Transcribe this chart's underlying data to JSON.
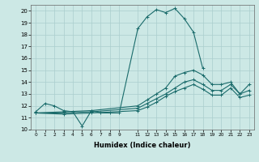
{
  "xlabel": "Humidex (Indice chaleur)",
  "background_color": "#cce8e5",
  "grid_color": "#aacece",
  "line_color": "#1a6b6b",
  "xlim": [
    -0.5,
    23.5
  ],
  "ylim": [
    10,
    20.5
  ],
  "xticks": [
    0,
    1,
    2,
    3,
    4,
    5,
    6,
    7,
    8,
    9,
    11,
    12,
    13,
    14,
    15,
    16,
    17,
    18,
    19,
    20,
    21,
    22,
    23
  ],
  "yticks": [
    10,
    11,
    12,
    13,
    14,
    15,
    16,
    17,
    18,
    19,
    20
  ],
  "series": [
    {
      "x": [
        0,
        1,
        2,
        3,
        4,
        5,
        6,
        7,
        8,
        9,
        11,
        12,
        13,
        14,
        15,
        16,
        17,
        18
      ],
      "y": [
        11.5,
        12.2,
        12.0,
        11.6,
        11.5,
        10.3,
        11.6,
        11.4,
        11.4,
        11.4,
        18.5,
        19.5,
        20.1,
        19.85,
        20.2,
        19.35,
        18.2,
        15.15
      ]
    },
    {
      "x": [
        0,
        3,
        6,
        11,
        12,
        13,
        14,
        15,
        16,
        17,
        18,
        19,
        20,
        21,
        22,
        23
      ],
      "y": [
        11.4,
        11.5,
        11.6,
        12.0,
        12.5,
        13.0,
        13.5,
        14.5,
        14.8,
        15.0,
        14.6,
        13.8,
        13.8,
        14.0,
        13.0,
        13.8
      ]
    },
    {
      "x": [
        0,
        3,
        6,
        11,
        12,
        13,
        14,
        15,
        16,
        17,
        18,
        19,
        20,
        21,
        22,
        23
      ],
      "y": [
        11.4,
        11.4,
        11.5,
        11.8,
        12.2,
        12.6,
        13.0,
        13.5,
        14.0,
        14.2,
        13.8,
        13.3,
        13.3,
        13.8,
        13.0,
        13.3
      ]
    },
    {
      "x": [
        0,
        3,
        6,
        11,
        12,
        13,
        14,
        15,
        16,
        17,
        18,
        19,
        20,
        21,
        22,
        23
      ],
      "y": [
        11.4,
        11.3,
        11.4,
        11.6,
        11.9,
        12.3,
        12.8,
        13.2,
        13.5,
        13.8,
        13.4,
        12.9,
        12.9,
        13.5,
        12.7,
        12.9
      ]
    }
  ]
}
